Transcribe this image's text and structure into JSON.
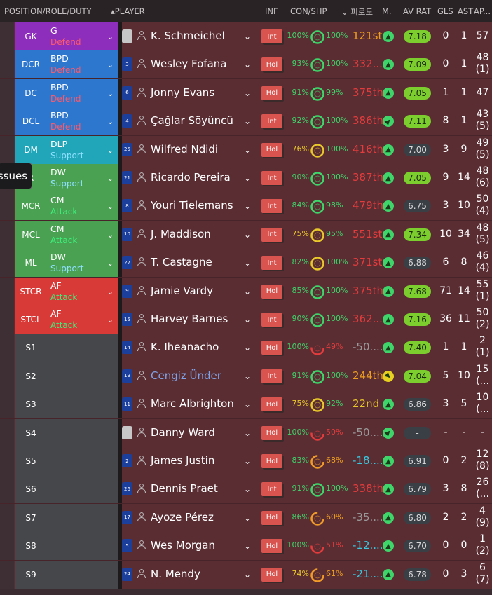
{
  "header": {
    "position": "POSITION/ROLE/DUTY",
    "player": "PLAYER",
    "inf": "INF",
    "con_shp": "CON/SHP",
    "kleague": "피로도",
    "m": "M.",
    "av_rat": "AV RAT",
    "gls": "GLS",
    "ast": "AST",
    "ap": "AP..."
  },
  "tooltip": "ssues",
  "colors": {
    "purple": "#8e2ebd",
    "blue": "#2d77cf",
    "teal": "#20a6b8",
    "green": "#4aa152",
    "red": "#d83a38",
    "reserve": "#46474a",
    "green_text": "#3ed56a",
    "yellow_text": "#e8c82a",
    "red_text": "#e43c3c",
    "cyan_text": "#38c8e0",
    "orange_text": "#f0a020",
    "gray_text": "#9a9a9a"
  },
  "rows": [
    {
      "pos": "GK",
      "r1": "G",
      "r2": "Defend",
      "duty": "defend",
      "band": "purple",
      "shirt_no": "",
      "gk": true,
      "name": "K. Schmeichel",
      "inf": "Int",
      "con": "100%",
      "con_col": "green",
      "ring": "green",
      "shp": "100%",
      "shp_col": "green",
      "kl": "121st",
      "kl_col": "orange",
      "mv": "up",
      "rat": "7.18",
      "rat_style": "green",
      "gls": "0",
      "ast": "1",
      "ap1": "57",
      "ap2": ""
    },
    {
      "pos": "DCR",
      "r1": "BPD",
      "r2": "Defend",
      "duty": "defend",
      "band": "blue",
      "shirt_no": "3",
      "name": "Wesley Fofana",
      "inf": "Hol",
      "con": "93%",
      "con_col": "green",
      "ring": "green",
      "shp": "100%",
      "shp_col": "green",
      "kl": "332...",
      "kl_col": "red",
      "mv": "up",
      "rat": "7.09",
      "rat_style": "green",
      "gls": "0",
      "ast": "1",
      "ap1": "48",
      "ap2": "(1)"
    },
    {
      "pos": "DC",
      "r1": "BPD",
      "r2": "Defend",
      "duty": "defend",
      "band": "blue",
      "shirt_no": "6",
      "name": "Jonny Evans",
      "inf": "Hol",
      "con": "91%",
      "con_col": "green",
      "ring": "green",
      "shp": "99%",
      "shp_col": "green",
      "kl": "375th",
      "kl_col": "red",
      "mv": "up",
      "rat": "7.05",
      "rat_style": "green",
      "gls": "1",
      "ast": "1",
      "ap1": "47",
      "ap2": ""
    },
    {
      "pos": "DCL",
      "r1": "BPD",
      "r2": "Defend",
      "duty": "defend",
      "band": "blue",
      "shirt_no": "4",
      "name": "Çağlar Söyüncü",
      "inf": "Int",
      "con": "92%",
      "con_col": "green",
      "ring": "green",
      "shp": "100%",
      "shp_col": "green",
      "kl": "386th",
      "kl_col": "red",
      "mv": "up-right",
      "rat": "7.11",
      "rat_style": "green",
      "gls": "8",
      "ast": "1",
      "ap1": "43",
      "ap2": "(5)"
    },
    {
      "pos": "DM",
      "r1": "DLP",
      "r2": "Support",
      "duty": "support",
      "band": "teal",
      "shirt_no": "25",
      "name": "Wilfred Ndidi",
      "inf": "Hol",
      "con": "76%",
      "con_col": "yellow",
      "ring": "yellow",
      "shp": "100%",
      "shp_col": "green",
      "kl": "416th",
      "kl_col": "red",
      "mv": "up",
      "rat": "7.00",
      "rat_style": "dark",
      "gls": "3",
      "ast": "9",
      "ap1": "49",
      "ap2": "(5)"
    },
    {
      "pos": "R",
      "r1": "DW",
      "r2": "Support",
      "duty": "support",
      "band": "green",
      "shirt_no": "21",
      "name": "Ricardo Pereira",
      "inf": "Int",
      "con": "90%",
      "con_col": "green",
      "ring": "green",
      "shp": "100%",
      "shp_col": "green",
      "kl": "387th",
      "kl_col": "red",
      "mv": "up",
      "rat": "7.05",
      "rat_style": "green",
      "gls": "9",
      "ast": "14",
      "ap1": "48",
      "ap2": "(6)"
    },
    {
      "pos": "MCR",
      "r1": "CM",
      "r2": "Attack",
      "duty": "attack",
      "band": "green",
      "shirt_no": "8",
      "name": "Youri Tielemans",
      "inf": "Int",
      "con": "84%",
      "con_col": "green",
      "ring": "green",
      "shp": "98%",
      "shp_col": "green",
      "kl": "479th",
      "kl_col": "red",
      "mv": "up",
      "rat": "6.75",
      "rat_style": "dark",
      "gls": "3",
      "ast": "10",
      "ap1": "50",
      "ap2": "(4)"
    },
    {
      "pos": "MCL",
      "r1": "CM",
      "r2": "Attack",
      "duty": "attack",
      "band": "green",
      "shirt_no": "10",
      "name": "J. Maddison",
      "inf": "Int",
      "con": "75%",
      "con_col": "yellow",
      "ring": "yellow",
      "shp": "95%",
      "shp_col": "green",
      "kl": "551st",
      "kl_col": "red",
      "mv": "up",
      "rat": "7.34",
      "rat_style": "green",
      "gls": "10",
      "ast": "34",
      "ap1": "48",
      "ap2": "(5)"
    },
    {
      "pos": "ML",
      "r1": "DW",
      "r2": "Support",
      "duty": "support",
      "band": "green",
      "shirt_no": "27",
      "name": "T. Castagne",
      "inf": "Int",
      "con": "82%",
      "con_col": "green",
      "ring": "yellow",
      "shp": "100%",
      "shp_col": "green",
      "kl": "371st",
      "kl_col": "red",
      "mv": "up",
      "rat": "6.88",
      "rat_style": "dark",
      "gls": "6",
      "ast": "8",
      "ap1": "46",
      "ap2": "(4)"
    },
    {
      "pos": "STCR",
      "r1": "AF",
      "r2": "Attack",
      "duty": "attack",
      "band": "red",
      "shirt_no": "9",
      "name": "Jamie Vardy",
      "inf": "Hol",
      "con": "85%",
      "con_col": "green",
      "ring": "green",
      "shp": "100%",
      "shp_col": "green",
      "kl": "375th",
      "kl_col": "red",
      "mv": "up",
      "rat": "7.68",
      "rat_style": "green",
      "gls": "71",
      "ast": "14",
      "ap1": "55",
      "ap2": "(1)"
    },
    {
      "pos": "STCL",
      "r1": "AF",
      "r2": "Attack",
      "duty": "attack",
      "band": "red",
      "shirt_no": "15",
      "name": "Harvey Barnes",
      "inf": "Int",
      "con": "90%",
      "con_col": "green",
      "ring": "green",
      "shp": "100%",
      "shp_col": "green",
      "kl": "362...",
      "kl_col": "red",
      "mv": "up",
      "rat": "7.16",
      "rat_style": "green",
      "gls": "36",
      "ast": "11",
      "ap1": "50",
      "ap2": "(2)"
    },
    {
      "pos": "S1",
      "r1": "",
      "r2": "",
      "duty": "",
      "band": "reserve",
      "shirt_no": "14",
      "name": "K. Iheanacho",
      "inf": "Hol",
      "con": "100%",
      "con_col": "green",
      "ring": "red",
      "shp": "49%",
      "shp_col": "red",
      "kl": "-50....",
      "kl_col": "gray",
      "mv": "up",
      "rat": "7.40",
      "rat_style": "green",
      "gls": "1",
      "ast": "1",
      "ap1": "2",
      "ap2": "(1)"
    },
    {
      "pos": "S2",
      "r1": "",
      "r2": "",
      "duty": "",
      "band": "reserve",
      "shirt_no": "19",
      "name": "Cengiz Ünder",
      "link": true,
      "inf": "Int",
      "con": "91%",
      "con_col": "green",
      "ring": "green",
      "shp": "100%",
      "shp_col": "green",
      "kl": "244th",
      "kl_col": "orange",
      "mv": "down-right",
      "rat": "7.04",
      "rat_style": "green",
      "gls": "5",
      "ast": "10",
      "ap1": "15",
      "ap2": "(..."
    },
    {
      "pos": "S3",
      "r1": "",
      "r2": "",
      "duty": "",
      "band": "reserve",
      "shirt_no": "11",
      "name": "Marc Albrighton",
      "inf": "Hol",
      "con": "75%",
      "con_col": "yellow",
      "ring": "yellow",
      "shp": "92%",
      "shp_col": "green",
      "kl": "22nd",
      "kl_col": "yellow",
      "mv": "up",
      "rat": "6.86",
      "rat_style": "dark",
      "gls": "3",
      "ast": "5",
      "ap1": "10",
      "ap2": "(..."
    },
    {
      "pos": "S4",
      "r1": "",
      "r2": "",
      "duty": "",
      "band": "reserve",
      "shirt_no": "",
      "gk": true,
      "name": "Danny Ward",
      "inf": "Hol",
      "con": "100%",
      "con_col": "green",
      "ring": "red",
      "shp": "50%",
      "shp_col": "red",
      "kl": "-50....",
      "kl_col": "gray",
      "mv": "up-right",
      "rat": "-",
      "rat_style": "dark",
      "gls": "-",
      "ast": "-",
      "ap1": "-",
      "ap2": ""
    },
    {
      "pos": "S5",
      "r1": "",
      "r2": "",
      "duty": "",
      "band": "reserve",
      "shirt_no": "2",
      "name": "James Justin",
      "inf": "Hol",
      "con": "83%",
      "con_col": "green",
      "ring": "orange",
      "shp": "68%",
      "shp_col": "orange",
      "kl": "-18.....",
      "kl_col": "cyan",
      "mv": "up",
      "rat": "6.91",
      "rat_style": "dark",
      "gls": "0",
      "ast": "2",
      "ap1": "12",
      "ap2": "(8)"
    },
    {
      "pos": "S6",
      "r1": "",
      "r2": "",
      "duty": "",
      "band": "reserve",
      "shirt_no": "26",
      "name": "Dennis Praet",
      "inf": "Int",
      "con": "91%",
      "con_col": "green",
      "ring": "green",
      "shp": "100%",
      "shp_col": "green",
      "kl": "338th",
      "kl_col": "red",
      "mv": "up",
      "rat": "6.79",
      "rat_style": "dark",
      "gls": "3",
      "ast": "8",
      "ap1": "26",
      "ap2": "(..."
    },
    {
      "pos": "S7",
      "r1": "",
      "r2": "",
      "duty": "",
      "band": "reserve",
      "shirt_no": "17",
      "name": "Ayoze Pérez",
      "inf": "Hol",
      "con": "86%",
      "con_col": "green",
      "ring": "orange",
      "shp": "60%",
      "shp_col": "orange",
      "kl": "-35....",
      "kl_col": "gray",
      "mv": "up",
      "rat": "6.80",
      "rat_style": "dark",
      "gls": "2",
      "ast": "2",
      "ap1": "4",
      "ap2": "(9)"
    },
    {
      "pos": "S8",
      "r1": "",
      "r2": "",
      "duty": "",
      "band": "reserve",
      "shirt_no": "5",
      "name": "Wes Morgan",
      "inf": "Hol",
      "con": "100%",
      "con_col": "green",
      "ring": "red",
      "shp": "51%",
      "shp_col": "red",
      "kl": "-12.....",
      "kl_col": "cyan",
      "mv": "up",
      "rat": "6.70",
      "rat_style": "dark",
      "gls": "0",
      "ast": "0",
      "ap1": "1",
      "ap2": "(2)"
    },
    {
      "pos": "S9",
      "r1": "",
      "r2": "",
      "duty": "",
      "band": "reserve",
      "shirt_no": "24",
      "name": "N. Mendy",
      "inf": "Hol",
      "con": "74%",
      "con_col": "yellow",
      "ring": "orange",
      "shp": "61%",
      "shp_col": "orange",
      "kl": "-21.....",
      "kl_col": "cyan",
      "mv": "up",
      "rat": "6.78",
      "rat_style": "dark",
      "gls": "0",
      "ast": "3",
      "ap1": "6",
      "ap2": "(7)"
    }
  ]
}
